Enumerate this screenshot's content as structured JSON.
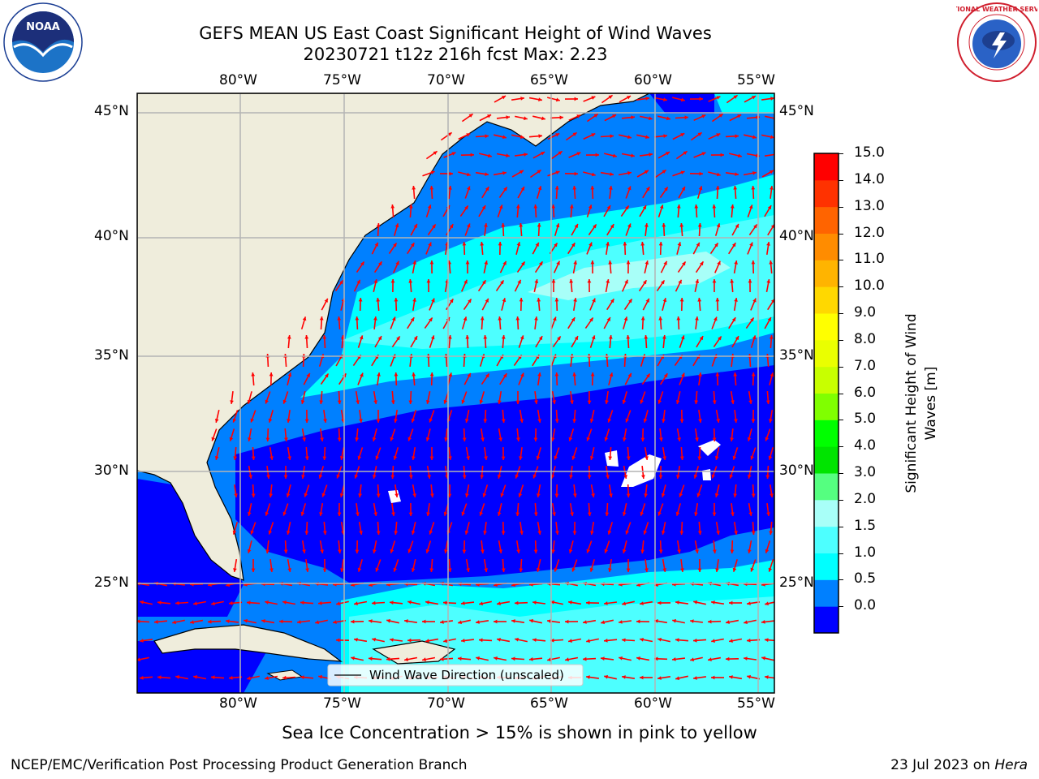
{
  "title": {
    "line1": "GEFS MEAN US East Coast Significant Height of Wind Waves",
    "line2": "20230721 t12z 216h fcst   Max: 2.23"
  },
  "map": {
    "lon_ticks": [
      "80°W",
      "75°W",
      "70°W",
      "65°W",
      "60°W",
      "55°W"
    ],
    "lat_ticks": [
      "45°N",
      "40°N",
      "35°N",
      "30°N",
      "25°N"
    ],
    "legend_label": "Wind Wave Direction (unscaled)",
    "arrow_color": "#ff0000",
    "land_color": "#efeddc",
    "ocean_colors": {
      "0.0-0.5": "#0000ff",
      "0.5-1.0": "#0080ff",
      "1.0-1.5": "#00ffff",
      "1.5-2.0": "#4dffff",
      "2.0-3.0": "#a8fff8"
    }
  },
  "colorbar": {
    "label_line1": "Significant Height of Wind",
    "label_line2": "Waves [m]",
    "ticks": [
      "15.0",
      "14.0",
      "13.0",
      "12.0",
      "11.0",
      "10.0",
      "9.0",
      "8.0",
      "7.0",
      "6.0",
      "5.0",
      "4.0",
      "3.0",
      "2.0",
      "1.5",
      "1.0",
      "0.5",
      "0.0"
    ],
    "colors_bottom_to_top": [
      "#0000ff",
      "#0080ff",
      "#00ffff",
      "#4dffff",
      "#a8fff8",
      "#55ff80",
      "#00e400",
      "#00ff00",
      "#80ff00",
      "#c8ff00",
      "#eaff00",
      "#ffff00",
      "#ffd800",
      "#ffb400",
      "#ff8c00",
      "#ff6400",
      "#ff3200",
      "#ff0000"
    ]
  },
  "sea_ice_note": "Sea Ice Concentration > 15% is shown in pink to yellow",
  "footer": {
    "left": "NCEP/EMC/Verification Post Processing Product Generation Branch",
    "right_prefix": "23 Jul 2023 on ",
    "right_machine": "Hera"
  },
  "logos": {
    "noaa_text": "NOAA",
    "nws_text": "NATIONAL WEATHER SERVICE"
  }
}
